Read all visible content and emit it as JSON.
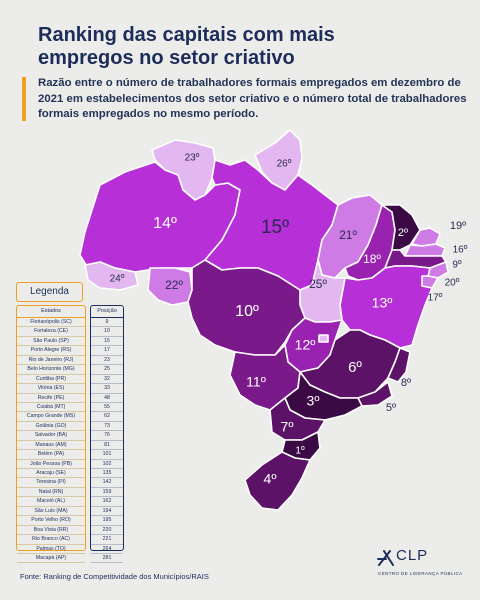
{
  "title_line1": "Ranking das capitais com mais",
  "title_line2": "empregos no setor criativo",
  "subtitle_line1": "Razão entre o número de trabalhadores formais empregados em dezembro de",
  "subtitle_line2": "2021 em estabelecimentos dos setor criativo e o número total de trabalhadores",
  "subtitle_line3": "formais empregados no mesmo período.",
  "legend_title": "Legenda",
  "table": {
    "col_states": "Estados",
    "col_position": "Posição",
    "rows": [
      {
        "name": "Florianópolis (SC)",
        "pos": "9"
      },
      {
        "name": "Fortaleza (CE)",
        "pos": "10"
      },
      {
        "name": "São Paulo (SP)",
        "pos": "15"
      },
      {
        "name": "Porto Alegre (RS)",
        "pos": "17"
      },
      {
        "name": "Rio de Janeiro (RJ)",
        "pos": "23"
      },
      {
        "name": "Belo Horizonte (MG)",
        "pos": "25"
      },
      {
        "name": "Curitiba (PR)",
        "pos": "32"
      },
      {
        "name": "Vitória (ES)",
        "pos": "33"
      },
      {
        "name": "Recife (PE)",
        "pos": "48"
      },
      {
        "name": "Cuiabá (MT)",
        "pos": "55"
      },
      {
        "name": "Campo Grande (MS)",
        "pos": "62"
      },
      {
        "name": "Goiânia (GO)",
        "pos": "73"
      },
      {
        "name": "Salvador (BA)",
        "pos": "76"
      },
      {
        "name": "Manaus (AM)",
        "pos": "81"
      },
      {
        "name": "Belém (PA)",
        "pos": "101"
      },
      {
        "name": "João Pessoa (PB)",
        "pos": "102"
      },
      {
        "name": "Aracaju (SE)",
        "pos": "135"
      },
      {
        "name": "Teresina (PI)",
        "pos": "142"
      },
      {
        "name": "Natal (RN)",
        "pos": "159"
      },
      {
        "name": "Maceió (AL)",
        "pos": "162"
      },
      {
        "name": "São Luís (MA)",
        "pos": "194"
      },
      {
        "name": "Porto Velho (RO)",
        "pos": "195"
      },
      {
        "name": "Boa Vista (RR)",
        "pos": "220"
      },
      {
        "name": "Rio Branco (AC)",
        "pos": "221"
      },
      {
        "name": "Palmas (TO)",
        "pos": "264"
      },
      {
        "name": "Macapá (AP)",
        "pos": "281"
      }
    ]
  },
  "map_labels": {
    "RR": "23º",
    "AP": "26º",
    "AM": "14º",
    "PA": "15º",
    "MA": "21º",
    "CE": "2º",
    "RN": "19º",
    "PB": "16º",
    "PE": "9º",
    "AL": "20º",
    "SE": "17º",
    "PI": "18º",
    "BA": "13º",
    "TO": "25º",
    "AC": "24º",
    "RO": "22º",
    "MT": "10º",
    "GO": "12º",
    "DF": "",
    "MS": "11º",
    "MG": "6º",
    "ES": "8º",
    "RJ": "5º",
    "SP": "3º",
    "PR": "7º",
    "SC": "1º",
    "RS": "4º"
  },
  "colors": {
    "darkest": "#3b0a45",
    "dark": "#5c1266",
    "mid_dark": "#7a1a8a",
    "mid": "#9a22b0",
    "bright": "#b72fd6",
    "light": "#cf7be6",
    "pale": "#e3b8f0",
    "accent": "#f0a020"
  },
  "source": "Fonte: Ranking de Competitividade dos Municípios/RAIS",
  "logo": "CLP",
  "logo_sub": "CENTRO DE LIDERANÇA PÚBLICA"
}
